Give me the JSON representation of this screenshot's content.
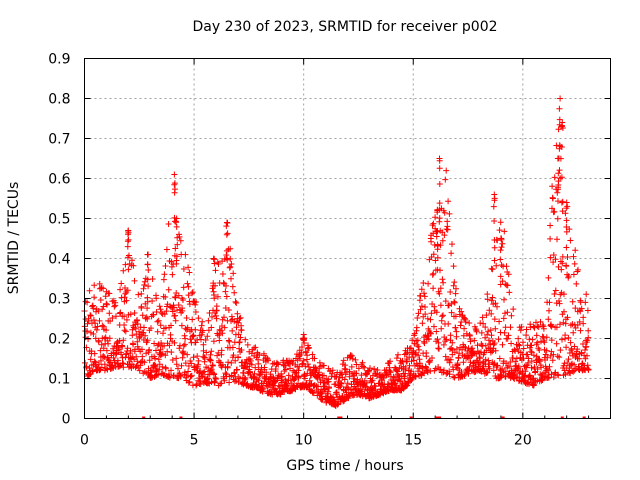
{
  "chart_data": {
    "type": "scatter",
    "title": "Day 230 of 2023, SRMTID for receiver p002",
    "xlabel": "GPS time / hours",
    "ylabel": "SRMTID / TECUs",
    "xlim": [
      0,
      24
    ],
    "ylim": [
      0,
      0.9
    ],
    "x_ticks": [
      0,
      5,
      10,
      15,
      20
    ],
    "x_tick_labels": [
      "0",
      "5",
      "10",
      "15",
      "20"
    ],
    "y_ticks": [
      0,
      0.1,
      0.2,
      0.3,
      0.4,
      0.5,
      0.6,
      0.7,
      0.8,
      0.9
    ],
    "y_tick_labels": [
      "0",
      "0.1",
      "0.2",
      "0.3",
      "0.4",
      "0.5",
      "0.6",
      "0.7",
      "0.8",
      "0.9"
    ],
    "grid": true,
    "marker": "+",
    "color": "#ff0000",
    "series": [
      {
        "name": "SRMTID",
        "envelope": {
          "x": [
            0,
            0.5,
            1,
            1.5,
            2,
            2.5,
            3,
            3.5,
            4,
            4.5,
            5,
            5.5,
            6,
            6.5,
            7,
            7.5,
            8,
            8.5,
            9,
            9.5,
            10,
            10.5,
            11,
            11.5,
            12,
            12.5,
            13,
            13.5,
            14,
            14.5,
            15,
            15.5,
            16,
            16.5,
            17,
            17.5,
            18,
            18.5,
            19,
            19.5,
            20,
            20.5,
            21,
            21.5,
            22,
            22.5,
            23
          ],
          "low": [
            0.1,
            0.12,
            0.12,
            0.13,
            0.12,
            0.12,
            0.1,
            0.11,
            0.1,
            0.1,
            0.08,
            0.09,
            0.08,
            0.09,
            0.09,
            0.08,
            0.07,
            0.06,
            0.06,
            0.07,
            0.08,
            0.06,
            0.04,
            0.03,
            0.05,
            0.06,
            0.05,
            0.06,
            0.07,
            0.07,
            0.1,
            0.11,
            0.12,
            0.11,
            0.1,
            0.11,
            0.12,
            0.1,
            0.1,
            0.1,
            0.09,
            0.08,
            0.1,
            0.1,
            0.11,
            0.12,
            0.12
          ],
          "high": [
            0.3,
            0.36,
            0.32,
            0.3,
            0.47,
            0.3,
            0.41,
            0.27,
            0.61,
            0.44,
            0.32,
            0.22,
            0.4,
            0.49,
            0.28,
            0.2,
            0.17,
            0.15,
            0.15,
            0.15,
            0.21,
            0.15,
            0.13,
            0.12,
            0.17,
            0.15,
            0.13,
            0.12,
            0.15,
            0.17,
            0.2,
            0.38,
            0.52,
            0.64,
            0.3,
            0.24,
            0.23,
            0.35,
            0.57,
            0.3,
            0.22,
            0.26,
            0.23,
            0.8,
            0.54,
            0.4,
            0.3
          ]
        },
        "peaks": [
          {
            "x": 2.0,
            "y": 0.47
          },
          {
            "x": 2.9,
            "y": 0.41
          },
          {
            "x": 4.1,
            "y": 0.61
          },
          {
            "x": 4.2,
            "y": 0.5
          },
          {
            "x": 5.9,
            "y": 0.4
          },
          {
            "x": 6.5,
            "y": 0.49
          },
          {
            "x": 10.0,
            "y": 0.21
          },
          {
            "x": 16.1,
            "y": 0.52
          },
          {
            "x": 16.2,
            "y": 0.65
          },
          {
            "x": 18.7,
            "y": 0.56
          },
          {
            "x": 19.0,
            "y": 0.45
          },
          {
            "x": 21.6,
            "y": 0.65
          },
          {
            "x": 21.7,
            "y": 0.8
          },
          {
            "x": 21.8,
            "y": 0.74
          },
          {
            "x": 22.0,
            "y": 0.54
          }
        ]
      }
    ],
    "rug_marks_x": [
      2.7,
      4.4,
      11.6,
      11.7,
      14.9,
      16.1,
      16.2,
      19.1,
      21.8,
      22.8
    ]
  }
}
